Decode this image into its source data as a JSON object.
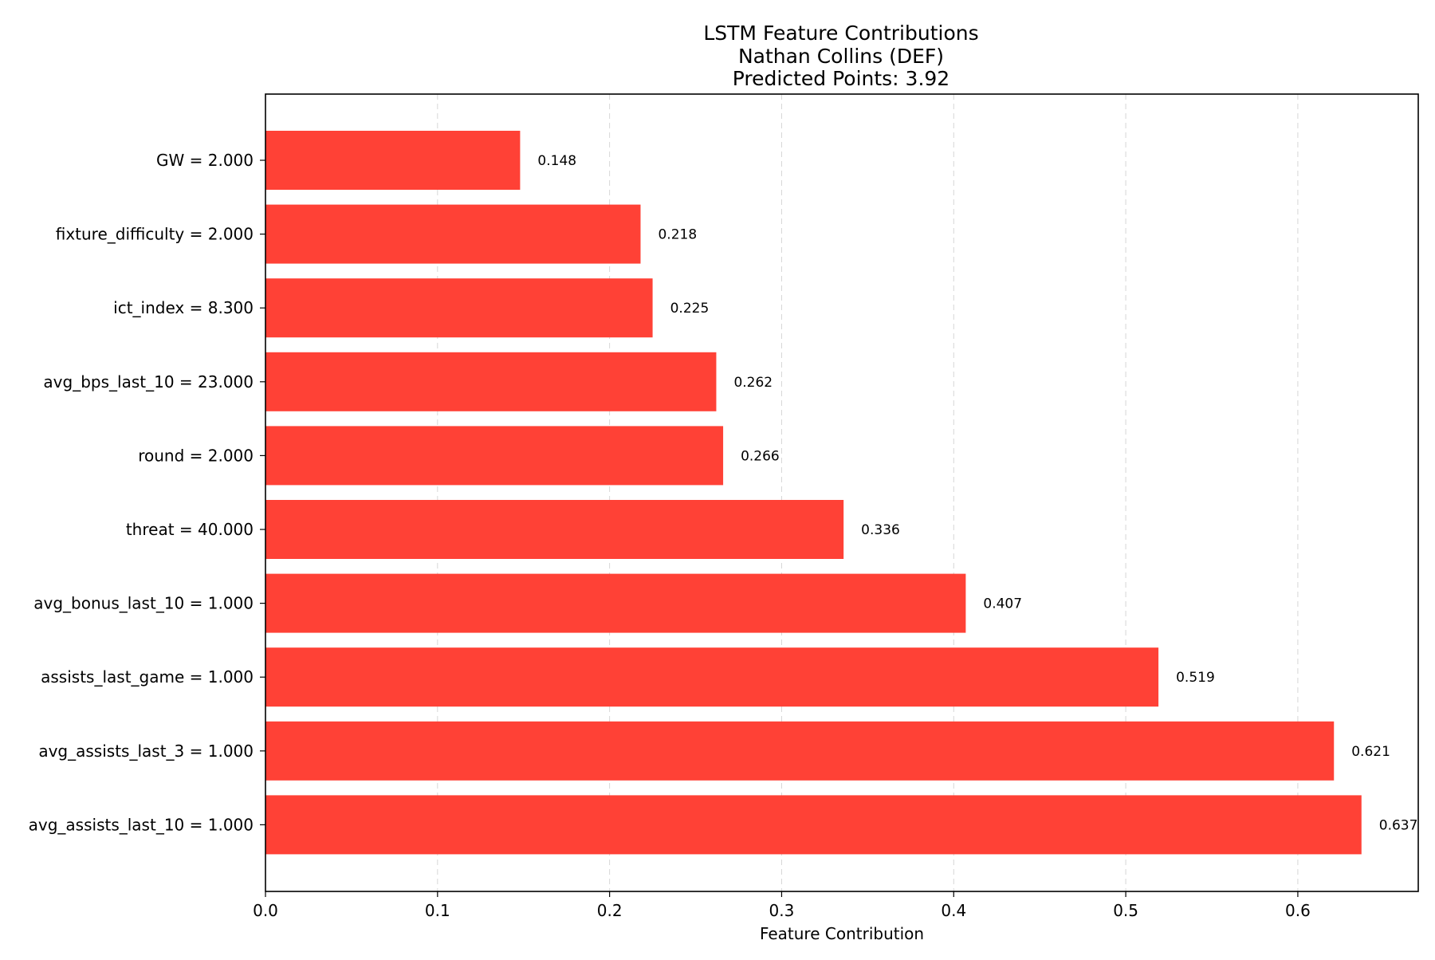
{
  "chart_data": {
    "type": "bar",
    "orientation": "horizontal",
    "title": "LSTM Feature Contributions",
    "subtitle": "Nathan Collins (DEF)",
    "subtitle2": "Predicted Points: 3.92",
    "xlabel": "Feature Contribution",
    "ylabel": "",
    "xlim": [
      0,
      0.67
    ],
    "x_ticks": [
      0.0,
      0.1,
      0.2,
      0.3,
      0.4,
      0.5,
      0.6
    ],
    "x_tick_labels": [
      "0.0",
      "0.1",
      "0.2",
      "0.3",
      "0.4",
      "0.5",
      "0.6"
    ],
    "grid": "vertical dashed",
    "bar_color": "#ff4136",
    "categories": [
      "GW = 2.000",
      "fixture_difficulty = 2.000",
      "ict_index = 8.300",
      "avg_bps_last_10 = 23.000",
      "round = 2.000",
      "threat = 40.000",
      "avg_bonus_last_10 = 1.000",
      "assists_last_game = 1.000",
      "avg_assists_last_3 = 1.000",
      "avg_assists_last_10 = 1.000"
    ],
    "values": [
      0.148,
      0.218,
      0.225,
      0.262,
      0.266,
      0.336,
      0.407,
      0.519,
      0.621,
      0.637
    ],
    "value_labels": [
      "0.148",
      "0.218",
      "0.225",
      "0.262",
      "0.266",
      "0.336",
      "0.407",
      "0.519",
      "0.621",
      "0.637"
    ]
  }
}
